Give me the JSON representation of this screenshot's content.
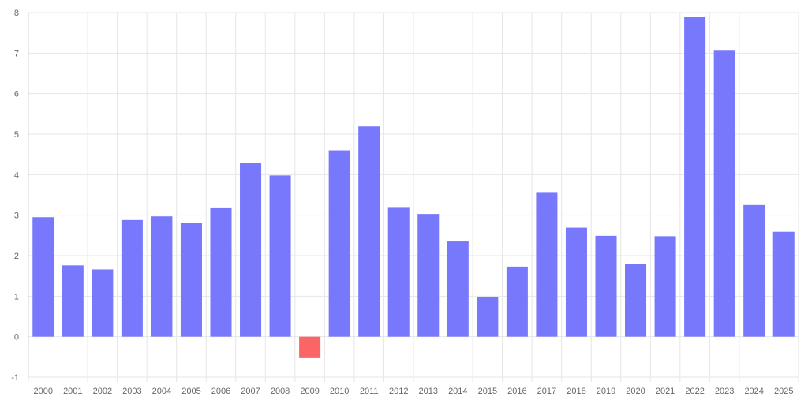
{
  "chart_data": {
    "type": "bar",
    "title": "",
    "xlabel": "",
    "ylabel": "",
    "categories": [
      "2000",
      "2001",
      "2002",
      "2003",
      "2004",
      "2005",
      "2006",
      "2007",
      "2008",
      "2009",
      "2010",
      "2011",
      "2012",
      "2013",
      "2014",
      "2015",
      "2016",
      "2017",
      "2018",
      "2019",
      "2020",
      "2021",
      "2022",
      "2023",
      "2024",
      "2025"
    ],
    "values": [
      2.95,
      1.76,
      1.66,
      2.88,
      2.97,
      2.81,
      3.19,
      4.28,
      3.98,
      -0.53,
      4.6,
      5.19,
      3.2,
      3.03,
      2.35,
      0.98,
      1.73,
      3.57,
      2.69,
      2.49,
      1.79,
      2.48,
      7.89,
      7.06,
      3.25,
      2.59
    ],
    "ylim": [
      -1,
      8
    ],
    "yticks": [
      "-1",
      "0",
      "1",
      "2",
      "3",
      "4",
      "5",
      "6",
      "7",
      "8"
    ],
    "grid": true,
    "legend": "none",
    "colors": {
      "positive": "#7878fc",
      "negative": "#fc6565",
      "grid": "#e6e6e6",
      "axis": "#cfcfcf",
      "text": "#666666"
    }
  }
}
